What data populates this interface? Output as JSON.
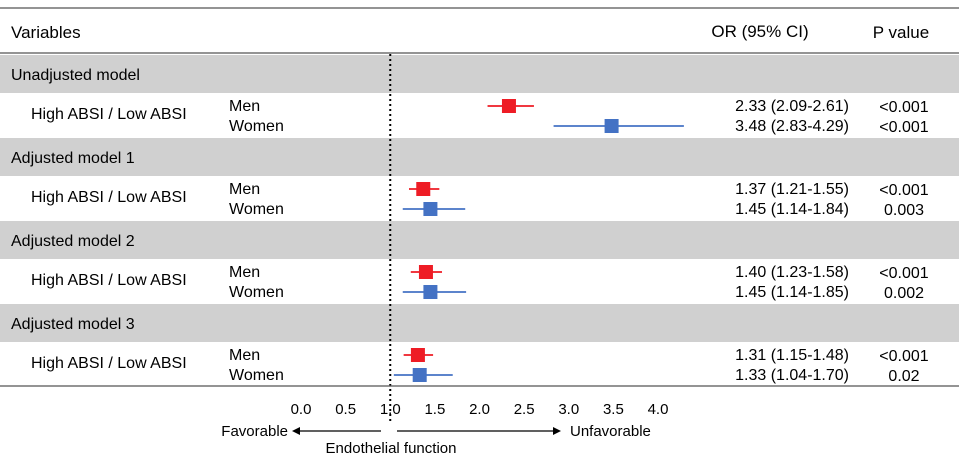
{
  "header": {
    "variables": "Variables",
    "or_ci": "OR (95% CI)",
    "p_value": "P value"
  },
  "chart_data": {
    "type": "forest",
    "xlim": [
      0,
      4
    ],
    "reference_value": 1.0,
    "x_ticks": [
      "0.0",
      "0.5",
      "1.0",
      "1.5",
      "2.0",
      "2.5",
      "3.0",
      "3.5",
      "4.0"
    ],
    "x_tick_values": [
      0,
      0.5,
      1.0,
      1.5,
      2.0,
      2.5,
      3.0,
      3.5,
      4.0
    ],
    "xlabel": "Endothelial function",
    "left_direction_label": "Favorable",
    "right_direction_label": "Unfavorable",
    "colors": {
      "Men": "#ee1c25",
      "Women": "#4472c4",
      "band": "#d0d0d0"
    },
    "groups": [
      {
        "model": "Unadjusted model",
        "comparison": "High ABSI / Low ABSI",
        "rows": [
          {
            "sex": "Men",
            "or": 2.33,
            "lo": 2.09,
            "hi": 2.61,
            "or_text": "2.33 (2.09-2.61)",
            "p": "<0.001"
          },
          {
            "sex": "Women",
            "or": 3.48,
            "lo": 2.83,
            "hi": 4.29,
            "or_text": "3.48 (2.83-4.29)",
            "p": "<0.001"
          }
        ]
      },
      {
        "model": "Adjusted model 1",
        "comparison": "High ABSI / Low ABSI",
        "rows": [
          {
            "sex": "Men",
            "or": 1.37,
            "lo": 1.21,
            "hi": 1.55,
            "or_text": "1.37 (1.21-1.55)",
            "p": "<0.001"
          },
          {
            "sex": "Women",
            "or": 1.45,
            "lo": 1.14,
            "hi": 1.84,
            "or_text": "1.45 (1.14-1.84)",
            "p": "0.003"
          }
        ]
      },
      {
        "model": "Adjusted model 2",
        "comparison": "High ABSI / Low ABSI",
        "rows": [
          {
            "sex": "Men",
            "or": 1.4,
            "lo": 1.23,
            "hi": 1.58,
            "or_text": "1.40 (1.23-1.58)",
            "p": "<0.001"
          },
          {
            "sex": "Women",
            "or": 1.45,
            "lo": 1.14,
            "hi": 1.85,
            "or_text": "1.45 (1.14-1.85)",
            "p": "0.002"
          }
        ]
      },
      {
        "model": "Adjusted model 3",
        "comparison": "High ABSI / Low ABSI",
        "rows": [
          {
            "sex": "Men",
            "or": 1.31,
            "lo": 1.15,
            "hi": 1.48,
            "or_text": "1.31 (1.15-1.48)",
            "p": "<0.001"
          },
          {
            "sex": "Women",
            "or": 1.33,
            "lo": 1.04,
            "hi": 1.7,
            "or_text": "1.33 (1.04-1.70)",
            "p": "0.02"
          }
        ]
      }
    ]
  }
}
